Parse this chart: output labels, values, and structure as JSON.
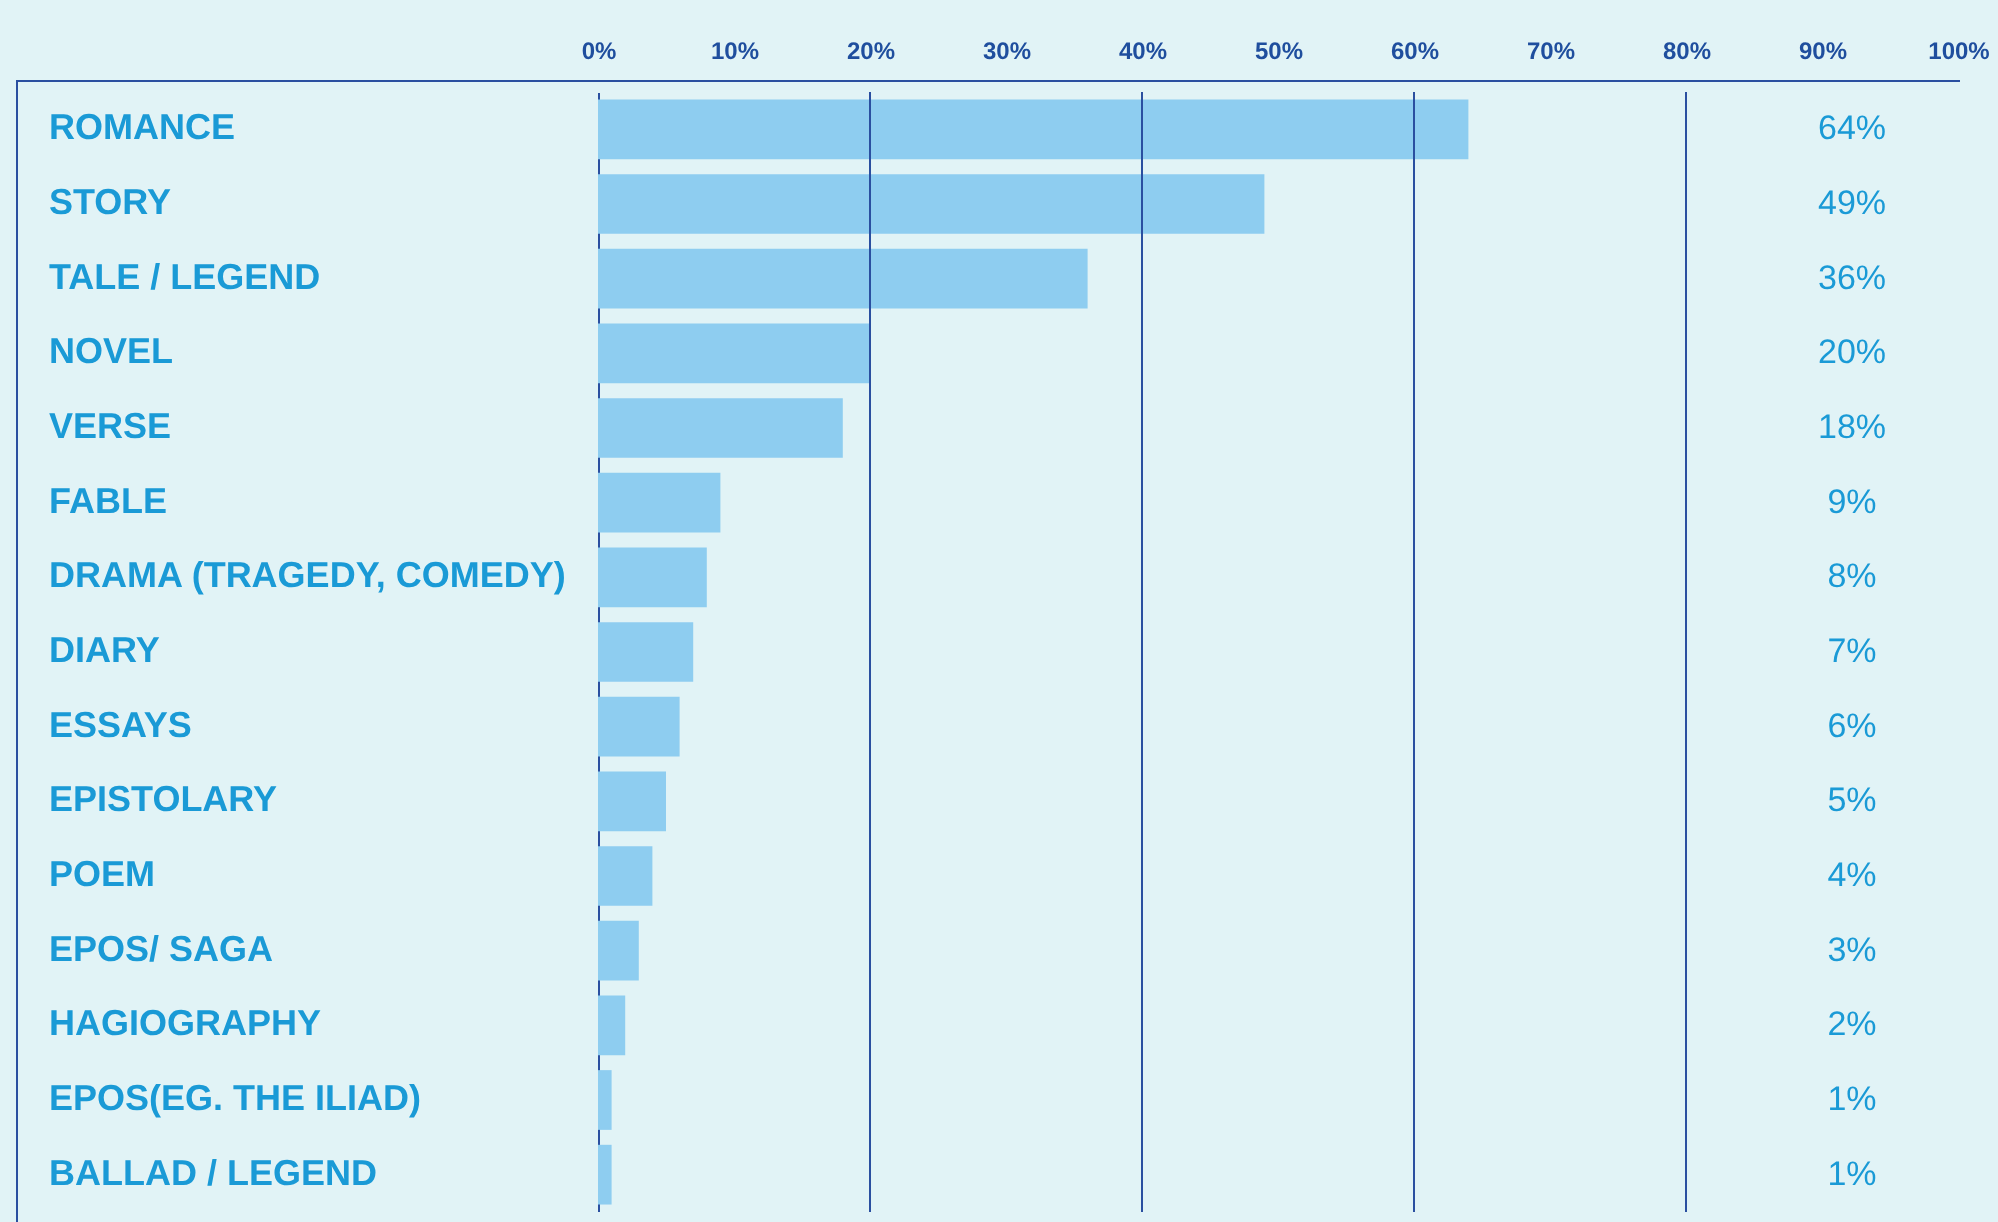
{
  "chart_data": {
    "type": "bar",
    "orientation": "horizontal",
    "categories": [
      "ROMANCE",
      "STORY",
      "TALE / LEGEND",
      "NOVEL",
      "VERSE",
      "FABLE",
      "DRAMA (TRAGEDY, COMEDY)",
      "DIARY",
      "ESSAYS",
      "EPISTOLARY",
      "POEM",
      "EPOS/ SAGA",
      "HAGIOGRAPHY",
      "EPOS(EG. THE ILIAD)",
      "BALLAD / LEGEND"
    ],
    "values": [
      64,
      49,
      36,
      20,
      18,
      9,
      8,
      7,
      6,
      5,
      4,
      3,
      2,
      1,
      1
    ],
    "value_labels": [
      "64%",
      "49%",
      "36%",
      "20%",
      "18%",
      "9%",
      "8%",
      "7%",
      "6%",
      "5%",
      "4%",
      "3%",
      "2%",
      "1%",
      "1%"
    ],
    "color": "#8ecdf0",
    "xlim": [
      0,
      100
    ],
    "xticks": [
      {
        "value": 0,
        "label": "0%"
      },
      {
        "value": 10,
        "label": "10%"
      },
      {
        "value": 20,
        "label": "20%"
      },
      {
        "value": 30,
        "label": "30%"
      },
      {
        "value": 40,
        "label": "40%"
      },
      {
        "value": 50,
        "label": "50%"
      },
      {
        "value": 60,
        "label": "60%"
      },
      {
        "value": 70,
        "label": "70%"
      },
      {
        "value": 80,
        "label": "80%"
      },
      {
        "value": 90,
        "label": "90%"
      },
      {
        "value": 100,
        "label": "100%"
      }
    ],
    "ref_lines": [
      {
        "axis": "x",
        "value": 20,
        "color": "#2a4fa0"
      },
      {
        "axis": "x",
        "value": 40,
        "color": "#2a4fa0"
      },
      {
        "axis": "x",
        "value": 60,
        "color": "#2a4fa0"
      },
      {
        "axis": "x",
        "value": 80,
        "color": "#2a4fa0"
      }
    ],
    "grid": false
  }
}
